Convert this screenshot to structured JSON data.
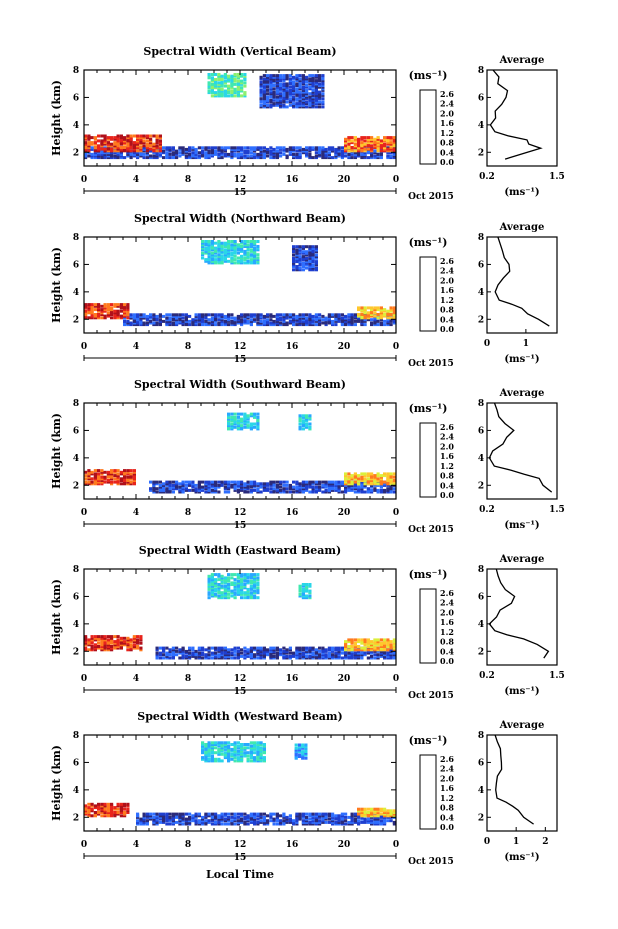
{
  "chart_data": {
    "type": "heatmap",
    "xlabel": "Local Time",
    "x_ticks": [
      "0",
      "4",
      "8",
      "12",
      "16",
      "20",
      "0"
    ],
    "x_range": [
      0,
      24
    ],
    "day_label": "15",
    "date_label": "Oct 2015",
    "ylabel": "Height (km)",
    "y_ticks": [
      "2",
      "4",
      "6",
      "8"
    ],
    "y_range": [
      1.0,
      8.0
    ],
    "colorbar": {
      "unit": "(ms⁻¹)",
      "ticks": [
        "2.6",
        "2.4",
        "2.0",
        "1.6",
        "1.2",
        "0.8",
        "0.4",
        "0.0"
      ],
      "colors": [
        "#2a2a7a",
        "#1f3fcf",
        "#2f6fff",
        "#28a8ff",
        "#2ad6e8",
        "#40e8b0",
        "#8df070",
        "#dcef3a",
        "#ffc72e",
        "#ff7a1e",
        "#e8241c",
        "#b0101a"
      ]
    },
    "panels": [
      {
        "title": "Spectral Width (Vertical Beam)",
        "profile_title": "Average",
        "profile_xticks": [
          "0.2",
          "1.5"
        ],
        "profile_xrange": [
          0.2,
          1.5
        ],
        "profile_xlabel": "(ms⁻¹)",
        "profile": [
          [
            1.5,
            0.55
          ],
          [
            2.0,
            0.95
          ],
          [
            2.3,
            1.2
          ],
          [
            2.6,
            1.0
          ],
          [
            2.9,
            0.9
          ],
          [
            3.2,
            0.6
          ],
          [
            3.5,
            0.35
          ],
          [
            4.0,
            0.3
          ],
          [
            4.5,
            0.3
          ],
          [
            5.0,
            0.35
          ],
          [
            5.5,
            0.45
          ],
          [
            6.0,
            0.55
          ],
          [
            6.5,
            0.55
          ],
          [
            7.0,
            0.45
          ],
          [
            7.5,
            0.4
          ],
          [
            8.0,
            0.35
          ]
        ],
        "regions": [
          {
            "h": [
              1.5,
              2.3
            ],
            "t": [
              0,
              24
            ],
            "level": 1
          },
          {
            "h": [
              2.0,
              3.2
            ],
            "t": [
              0,
              6
            ],
            "level": 10
          },
          {
            "h": [
              2.0,
              3.0
            ],
            "t": [
              20,
              24
            ],
            "level": 9
          },
          {
            "h": [
              6.0,
              7.6
            ],
            "t": [
              9.5,
              12.5
            ],
            "level": 5
          },
          {
            "h": [
              5.2,
              7.6
            ],
            "t": [
              13.5,
              18.5
            ],
            "level": 1
          }
        ]
      },
      {
        "title": "Spectral Width (Northward Beam)",
        "profile_title": "Average",
        "profile_xticks": [
          "0",
          "1"
        ],
        "profile_xrange": [
          0,
          1.8
        ],
        "profile_xlabel": "(ms⁻¹)",
        "profile": [
          [
            1.5,
            1.6
          ],
          [
            2.0,
            1.3
          ],
          [
            2.4,
            1.0
          ],
          [
            2.8,
            0.9
          ],
          [
            3.1,
            0.6
          ],
          [
            3.4,
            0.3
          ],
          [
            4.0,
            0.25
          ],
          [
            4.5,
            0.3
          ],
          [
            5.0,
            0.4
          ],
          [
            5.5,
            0.55
          ],
          [
            6.0,
            0.6
          ],
          [
            6.5,
            0.5
          ],
          [
            7.0,
            0.4
          ],
          [
            7.5,
            0.35
          ],
          [
            8.0,
            0.3
          ]
        ],
        "regions": [
          {
            "h": [
              1.5,
              2.3
            ],
            "t": [
              3,
              24
            ],
            "level": 1
          },
          {
            "h": [
              2.0,
              3.0
            ],
            "t": [
              0,
              3.5
            ],
            "level": 10
          },
          {
            "h": [
              2.0,
              2.8
            ],
            "t": [
              21,
              24
            ],
            "level": 8
          },
          {
            "h": [
              6.0,
              7.6
            ],
            "t": [
              9.0,
              13.5
            ],
            "level": 4
          },
          {
            "h": [
              5.5,
              7.2
            ],
            "t": [
              16,
              18
            ],
            "level": 1
          }
        ]
      },
      {
        "title": "Spectral Width (Southward Beam)",
        "profile_title": "Average",
        "profile_xticks": [
          "0.2",
          "1.5"
        ],
        "profile_xrange": [
          0.2,
          1.5
        ],
        "profile_xlabel": "(ms⁻¹)",
        "profile": [
          [
            1.5,
            1.4
          ],
          [
            2.0,
            1.3
          ],
          [
            2.5,
            1.2
          ],
          [
            2.8,
            0.9
          ],
          [
            3.1,
            0.6
          ],
          [
            3.4,
            0.35
          ],
          [
            4.0,
            0.3
          ],
          [
            4.5,
            0.35
          ],
          [
            5.0,
            0.45
          ],
          [
            5.5,
            0.6
          ],
          [
            6.0,
            0.65
          ],
          [
            6.5,
            0.55
          ],
          [
            7.0,
            0.45
          ],
          [
            7.5,
            0.4
          ],
          [
            8.0,
            0.35
          ]
        ],
        "regions": [
          {
            "h": [
              1.4,
              2.2
            ],
            "t": [
              5,
              24
            ],
            "level": 1
          },
          {
            "h": [
              2.0,
              3.0
            ],
            "t": [
              0,
              3.8
            ],
            "level": 10
          },
          {
            "h": [
              2.0,
              2.8
            ],
            "t": [
              20,
              24
            ],
            "level": 8
          },
          {
            "h": [
              6.0,
              7.2
            ],
            "t": [
              11,
              13.5
            ],
            "level": 4
          },
          {
            "h": [
              6.0,
              7.0
            ],
            "t": [
              16.5,
              17.5
            ],
            "level": 4
          }
        ]
      },
      {
        "title": "Spectral Width (Eastward Beam)",
        "profile_title": "Average",
        "profile_xticks": [
          "0.2",
          "1.5"
        ],
        "profile_xrange": [
          0.2,
          1.5
        ],
        "profile_xlabel": "(ms⁻¹)",
        "profile": [
          [
            1.5,
            1.2
          ],
          [
            2.0,
            1.3
          ],
          [
            2.5,
            1.1
          ],
          [
            2.9,
            0.9
          ],
          [
            3.2,
            0.6
          ],
          [
            3.5,
            0.35
          ],
          [
            4.0,
            0.3
          ],
          [
            4.5,
            0.4
          ],
          [
            5.0,
            0.5
          ],
          [
            5.5,
            0.6
          ],
          [
            6.0,
            0.7
          ],
          [
            6.5,
            0.6
          ],
          [
            7.0,
            0.5
          ],
          [
            7.5,
            0.4
          ],
          [
            8.0,
            0.35
          ]
        ],
        "regions": [
          {
            "h": [
              1.4,
              2.2
            ],
            "t": [
              5.5,
              24
            ],
            "level": 1
          },
          {
            "h": [
              2.0,
              3.0
            ],
            "t": [
              0,
              4.5
            ],
            "level": 10
          },
          {
            "h": [
              2.0,
              2.8
            ],
            "t": [
              20,
              24
            ],
            "level": 8
          },
          {
            "h": [
              5.8,
              7.6
            ],
            "t": [
              9.5,
              13.5
            ],
            "level": 4
          },
          {
            "h": [
              5.8,
              6.8
            ],
            "t": [
              16.5,
              17.5
            ],
            "level": 4
          }
        ]
      },
      {
        "title": "Spectral Width (Westward Beam)",
        "profile_title": "Average",
        "profile_xticks": [
          "0",
          "1",
          "2"
        ],
        "profile_xrange": [
          0,
          2.4
        ],
        "profile_xlabel": "(ms⁻¹)",
        "profile": [
          [
            1.5,
            1.6
          ],
          [
            2.0,
            1.3
          ],
          [
            2.5,
            1.1
          ],
          [
            2.8,
            0.9
          ],
          [
            3.1,
            0.6
          ],
          [
            3.4,
            0.3
          ],
          [
            4.0,
            0.25
          ],
          [
            4.5,
            0.3
          ],
          [
            5.0,
            0.4
          ],
          [
            5.5,
            0.5
          ],
          [
            6.0,
            0.55
          ],
          [
            6.5,
            0.45
          ],
          [
            7.0,
            0.4
          ],
          [
            7.5,
            0.35
          ],
          [
            8.0,
            0.3
          ]
        ],
        "regions": [
          {
            "h": [
              1.4,
              2.2
            ],
            "t": [
              4,
              24
            ],
            "level": 1
          },
          {
            "h": [
              2.0,
              2.9
            ],
            "t": [
              0,
              3.5
            ],
            "level": 10
          },
          {
            "h": [
              2.0,
              2.6
            ],
            "t": [
              21,
              24
            ],
            "level": 8
          },
          {
            "h": [
              6.0,
              7.4
            ],
            "t": [
              9,
              14
            ],
            "level": 4
          },
          {
            "h": [
              6.2,
              7.2
            ],
            "t": [
              16.2,
              17.2
            ],
            "level": 3
          }
        ]
      }
    ]
  }
}
